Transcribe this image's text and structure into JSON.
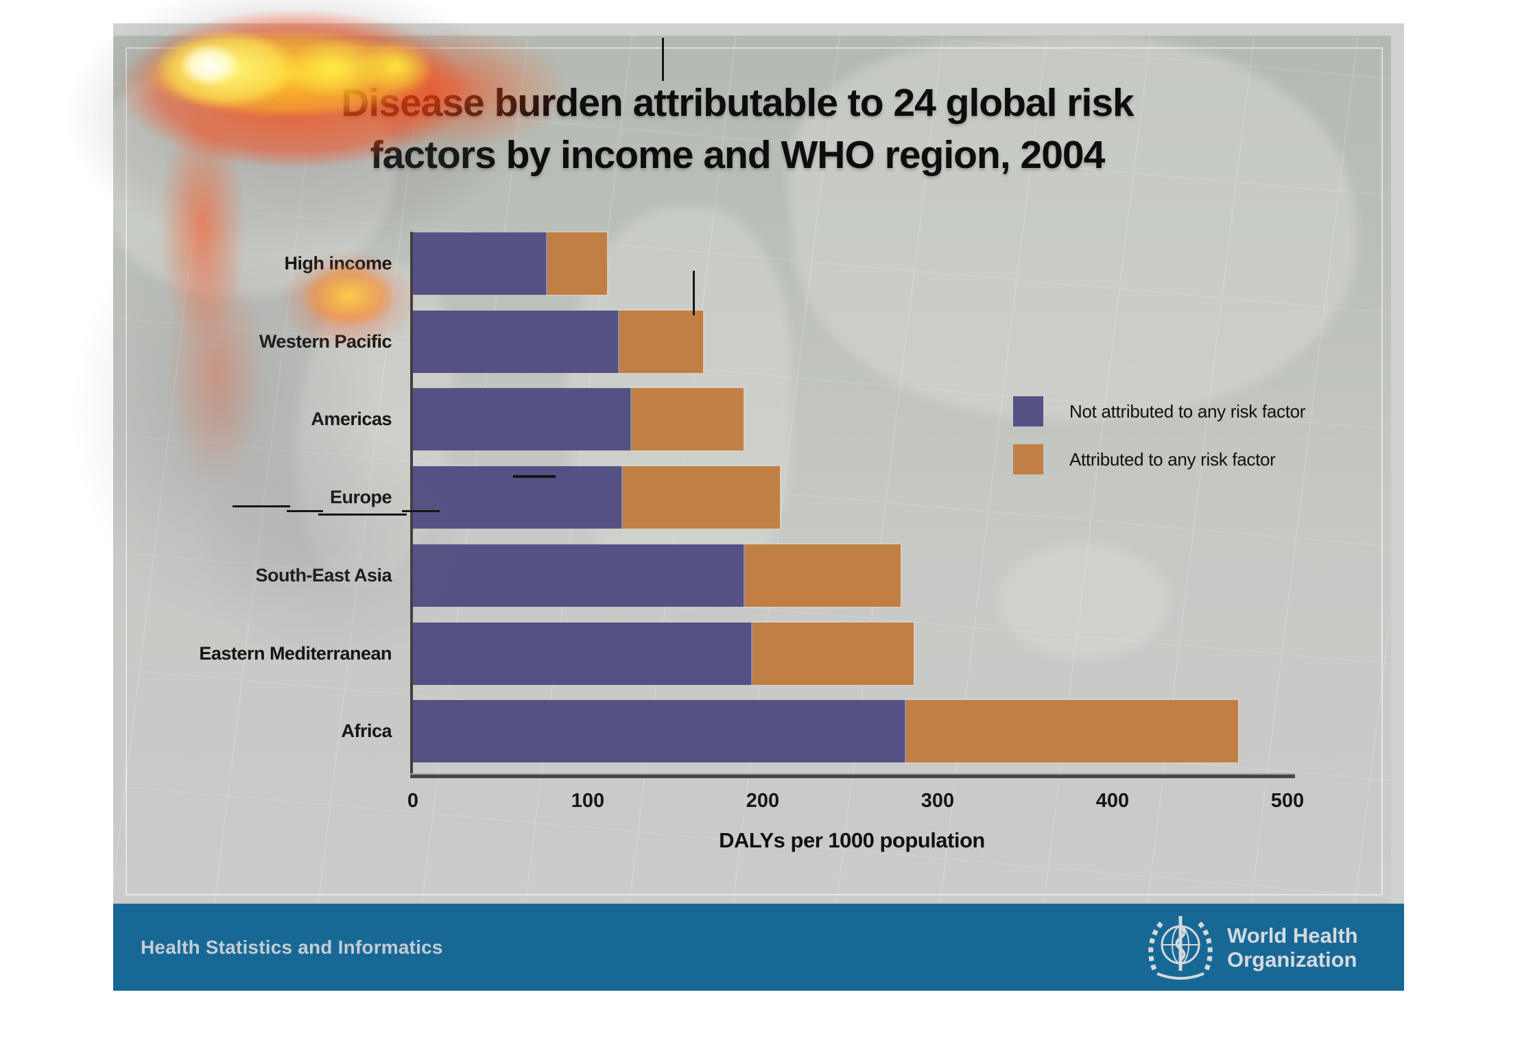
{
  "slide": {
    "title_line1": "Disease burden attributable to 24 global risk",
    "title_line2": "factors by income and WHO region, 2004"
  },
  "chart_data": {
    "type": "bar",
    "orientation": "horizontal",
    "stacked": true,
    "categories": [
      "High income",
      "Western Pacific",
      "Americas",
      "Europe",
      "South-East Asia",
      "Eastern Mediterranean",
      "Africa"
    ],
    "series": [
      {
        "name": "Not attributed to any risk factor",
        "color": "#555184",
        "values": [
          77,
          118,
          125,
          120,
          190,
          194,
          282
        ]
      },
      {
        "name": "Attributed to any risk factor",
        "color": "#c27f43",
        "values": [
          34,
          48,
          64,
          90,
          89,
          92,
          190
        ]
      }
    ],
    "totals": [
      111,
      166,
      189,
      210,
      279,
      286,
      472
    ],
    "xlabel": "DALYs per 1000 population",
    "x_ticks": [
      0,
      100,
      200,
      300,
      400,
      500
    ],
    "xlim": [
      0,
      505
    ],
    "grid": false,
    "legend_position": "right"
  },
  "footer": {
    "department": "Health Statistics and Informatics",
    "org_line1": "World Health",
    "org_line2": "Organization",
    "band_color": "#186896"
  },
  "colors": {
    "not_attributed": "#555184",
    "attributed": "#c27f43",
    "slide_bg": "#d1d2d0",
    "axis": "#3f3f3f"
  }
}
